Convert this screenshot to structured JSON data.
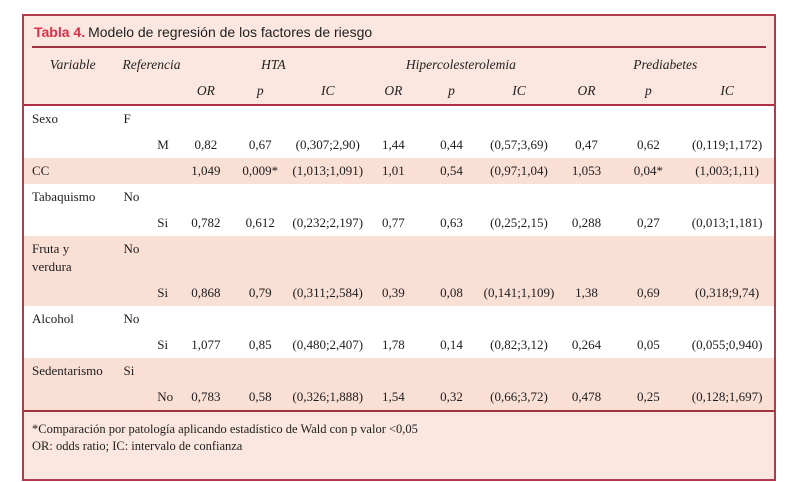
{
  "title": {
    "label": "Tabla 4.",
    "text": "Modelo de regresión de los factores de riesgo"
  },
  "header": {
    "variable": "Variable",
    "referencia": "Referencia",
    "groups": [
      {
        "name": "HTA",
        "cols": [
          "OR",
          "p",
          "IC"
        ]
      },
      {
        "name": "Hipercolesterolemia",
        "cols": [
          "OR",
          "p",
          "IC"
        ]
      },
      {
        "name": "Prediabetes",
        "cols": [
          "OR",
          "p",
          "IC"
        ]
      }
    ]
  },
  "rows": [
    {
      "variable": "Sexo",
      "reference": "F",
      "level": "M",
      "shaded": false,
      "single_line": false,
      "hta": {
        "or": "0,82",
        "p": "0,67",
        "ic": "(0,307;2,90)"
      },
      "hiper": {
        "or": "1,44",
        "p": "0,44",
        "ic": "(0,57;3,69)"
      },
      "pred": {
        "or": "0,47",
        "p": "0,62",
        "ic": "(0,119;1,172)"
      }
    },
    {
      "variable": "CC",
      "reference": "",
      "level": "",
      "shaded": true,
      "single_line": true,
      "hta": {
        "or": "1,049",
        "p": "0,009*",
        "ic": "(1,013;1,091)"
      },
      "hiper": {
        "or": "1,01",
        "p": "0,54",
        "ic": "(0,97;1,04)"
      },
      "pred": {
        "or": "1,053",
        "p": "0,04*",
        "ic": "(1,003;1,11)"
      }
    },
    {
      "variable": "Tabaquismo",
      "reference": "No",
      "level": "Si",
      "shaded": false,
      "single_line": false,
      "hta": {
        "or": "0,782",
        "p": "0,612",
        "ic": "(0,232;2,197)"
      },
      "hiper": {
        "or": "0,77",
        "p": "0,63",
        "ic": "(0,25;2,15)"
      },
      "pred": {
        "or": "0,288",
        "p": "0,27",
        "ic": "(0,013;1,181)"
      }
    },
    {
      "variable": "Fruta y verdura",
      "reference": "No",
      "level": "Si",
      "shaded": true,
      "single_line": false,
      "hta": {
        "or": "0,868",
        "p": "0,79",
        "ic": "(0,311;2,584)"
      },
      "hiper": {
        "or": "0,39",
        "p": "0,08",
        "ic": "(0,141;1,109)"
      },
      "pred": {
        "or": "1,38",
        "p": "0,69",
        "ic": "(0,318;9,74)"
      }
    },
    {
      "variable": "Alcohol",
      "reference": "No",
      "level": "Si",
      "shaded": false,
      "single_line": false,
      "hta": {
        "or": "1,077",
        "p": "0,85",
        "ic": "(0,480;2,407)"
      },
      "hiper": {
        "or": "1,78",
        "p": "0,14",
        "ic": "(0,82;3,12)"
      },
      "pred": {
        "or": "0,264",
        "p": "0,05",
        "ic": "(0,055;0,940)"
      }
    },
    {
      "variable": "Sedentarismo",
      "reference": "Si",
      "level": "No",
      "shaded": true,
      "single_line": false,
      "hta": {
        "or": "0,783",
        "p": "0,58",
        "ic": "(0,326;1,888)"
      },
      "hiper": {
        "or": "1,54",
        "p": "0,32",
        "ic": "(0,66;3,72)"
      },
      "pred": {
        "or": "0,478",
        "p": "0,25",
        "ic": "(0,128;1,697)"
      }
    }
  ],
  "footnotes": [
    "*Comparación por patología aplicando estadístico de Wald con p valor <0,05",
    "OR: odds ratio; IC: intervalo de confianza"
  ],
  "colors": {
    "border_red": "#b23a4b",
    "title_red": "#e02d49",
    "rule_red": "#9e3240",
    "card_pink": "#fbe7df",
    "row_pink": "#fadfd5"
  }
}
